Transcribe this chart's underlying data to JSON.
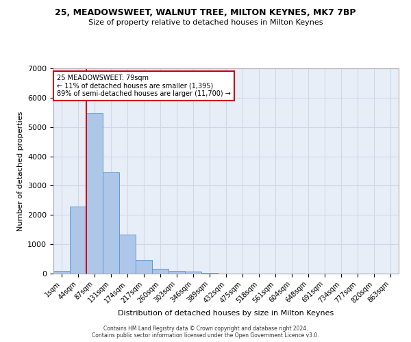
{
  "title": "25, MEADOWSWEET, WALNUT TREE, MILTON KEYNES, MK7 7BP",
  "subtitle": "Size of property relative to detached houses in Milton Keynes",
  "xlabel": "Distribution of detached houses by size in Milton Keynes",
  "ylabel": "Number of detached properties",
  "bin_labels": [
    "1sqm",
    "44sqm",
    "87sqm",
    "131sqm",
    "174sqm",
    "217sqm",
    "260sqm",
    "303sqm",
    "346sqm",
    "389sqm",
    "432sqm",
    "475sqm",
    "518sqm",
    "561sqm",
    "604sqm",
    "648sqm",
    "691sqm",
    "734sqm",
    "777sqm",
    "820sqm",
    "863sqm"
  ],
  "bar_values": [
    100,
    2280,
    5480,
    3450,
    1320,
    470,
    165,
    100,
    65,
    30,
    0,
    0,
    0,
    0,
    0,
    0,
    0,
    0,
    0,
    0,
    0
  ],
  "bar_color": "#aec6e8",
  "bar_edge_color": "#5b9bd5",
  "grid_color": "#d0d8e8",
  "background_color": "#e8eef8",
  "vline_x": 1.5,
  "vline_color": "#cc0000",
  "annotation_text": "25 MEADOWSWEET: 79sqm\n← 11% of detached houses are smaller (1,395)\n89% of semi-detached houses are larger (11,700) →",
  "annotation_box_color": "#ffffff",
  "annotation_box_edge_color": "#cc0000",
  "ylim": [
    0,
    7000
  ],
  "yticks": [
    0,
    1000,
    2000,
    3000,
    4000,
    5000,
    6000,
    7000
  ],
  "footer_line1": "Contains HM Land Registry data © Crown copyright and database right 2024.",
  "footer_line2": "Contains public sector information licensed under the Open Government Licence v3.0."
}
